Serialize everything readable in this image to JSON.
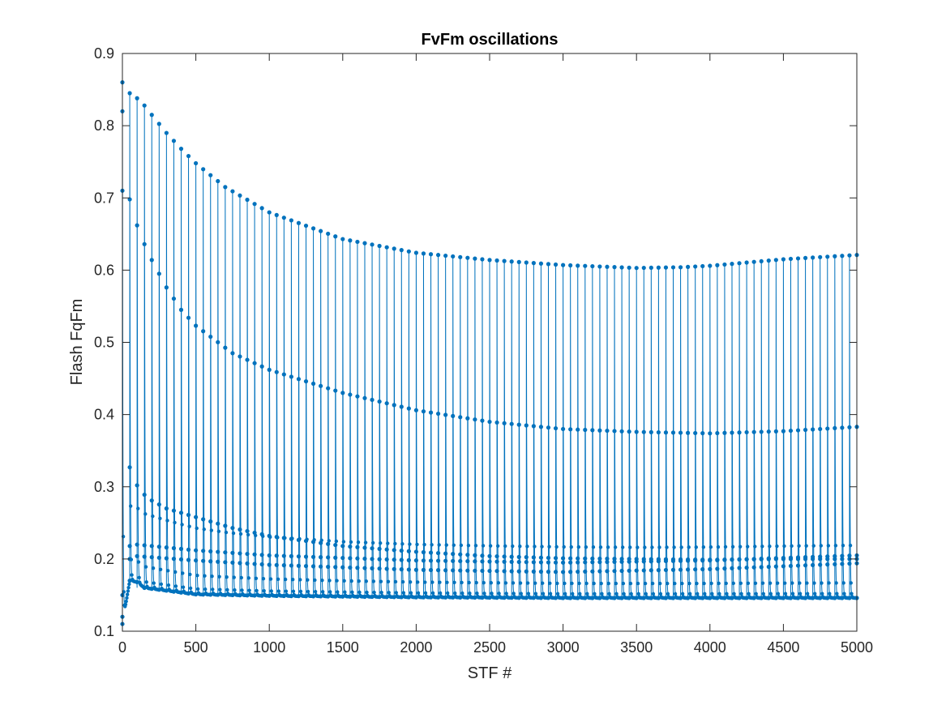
{
  "chart_data": {
    "type": "line",
    "title": "FvFm oscillations",
    "xlabel": "STF #",
    "ylabel": "Flash FqFm",
    "xlim": [
      0,
      5000
    ],
    "ylim": [
      0.1,
      0.9
    ],
    "xticks": [
      "0",
      "500",
      "1000",
      "1500",
      "2000",
      "2500",
      "3000",
      "3500",
      "4000",
      "4500",
      "5000"
    ],
    "yticks": [
      "0.1",
      "0.2",
      "0.3",
      "0.4",
      "0.5",
      "0.6",
      "0.7",
      "0.8",
      "0.9"
    ],
    "grid": false,
    "legend": "none",
    "line_color": "#0072BD",
    "marker": "dot",
    "period": 50,
    "series": [
      {
        "values_at_x": [
          [
            0,
            0.86
          ],
          [
            50,
            0.845
          ],
          [
            100,
            0.838
          ],
          [
            150,
            0.828
          ],
          [
            200,
            0.815
          ],
          [
            300,
            0.79
          ],
          [
            400,
            0.768
          ],
          [
            500,
            0.748
          ],
          [
            700,
            0.715
          ],
          [
            1000,
            0.68
          ],
          [
            1500,
            0.643
          ],
          [
            2000,
            0.624
          ],
          [
            2500,
            0.614
          ],
          [
            3000,
            0.607
          ],
          [
            3500,
            0.603
          ],
          [
            3800,
            0.604
          ],
          [
            4000,
            0.606
          ],
          [
            4500,
            0.615
          ],
          [
            5000,
            0.621
          ]
        ]
      },
      {
        "values_at_x": [
          [
            0,
            0.82
          ],
          [
            50,
            0.698
          ],
          [
            100,
            0.662
          ],
          [
            150,
            0.636
          ],
          [
            200,
            0.614
          ],
          [
            300,
            0.576
          ],
          [
            400,
            0.545
          ],
          [
            500,
            0.523
          ],
          [
            750,
            0.485
          ],
          [
            1000,
            0.462
          ],
          [
            1500,
            0.43
          ],
          [
            2000,
            0.406
          ],
          [
            2500,
            0.39
          ],
          [
            3000,
            0.38
          ],
          [
            3500,
            0.376
          ],
          [
            4000,
            0.374
          ],
          [
            4500,
            0.377
          ],
          [
            5000,
            0.383
          ]
        ]
      },
      {
        "values_at_x": [
          [
            0,
            0.71
          ],
          [
            50,
            0.327
          ],
          [
            100,
            0.302
          ],
          [
            150,
            0.289
          ],
          [
            200,
            0.281
          ],
          [
            300,
            0.27
          ],
          [
            500,
            0.258
          ],
          [
            750,
            0.243
          ],
          [
            1000,
            0.232
          ],
          [
            1500,
            0.218
          ],
          [
            2000,
            0.21
          ],
          [
            2500,
            0.204
          ],
          [
            3000,
            0.201
          ],
          [
            3500,
            0.2
          ],
          [
            4000,
            0.199
          ],
          [
            4500,
            0.2
          ],
          [
            5000,
            0.2
          ]
        ]
      },
      {
        "values_at_x": [
          [
            0,
            0.15
          ],
          [
            50,
            0.218
          ],
          [
            100,
            0.22
          ],
          [
            150,
            0.219
          ],
          [
            500,
            0.212
          ],
          [
            1000,
            0.205
          ],
          [
            2000,
            0.198
          ],
          [
            3000,
            0.195
          ],
          [
            4000,
            0.198
          ],
          [
            5000,
            0.205
          ]
        ]
      },
      {
        "values_at_x": [
          [
            0,
            0.12
          ],
          [
            50,
            0.2
          ],
          [
            100,
            0.204
          ],
          [
            500,
            0.198
          ],
          [
            1000,
            0.192
          ],
          [
            2000,
            0.185
          ],
          [
            3000,
            0.182
          ],
          [
            4000,
            0.186
          ],
          [
            5000,
            0.194
          ]
        ]
      },
      {
        "values_at_x": [
          [
            0,
            0.11
          ],
          [
            50,
            0.17
          ],
          [
            100,
            0.168
          ],
          [
            150,
            0.16
          ],
          [
            500,
            0.151
          ],
          [
            1000,
            0.149
          ],
          [
            2000,
            0.147
          ],
          [
            3000,
            0.146
          ],
          [
            4000,
            0.146
          ],
          [
            5000,
            0.146
          ]
        ]
      }
    ]
  }
}
